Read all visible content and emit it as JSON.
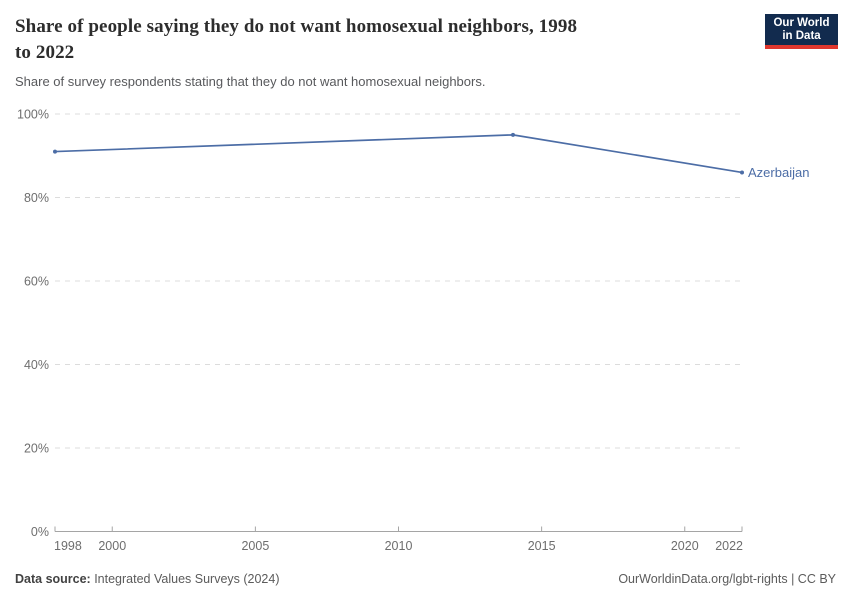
{
  "header": {
    "title": "Share of people saying they do not want homosexual neighbors, 1998\nto 2022",
    "subtitle": "Share of survey respondents stating that they do not want homosexual neighbors.",
    "logo": {
      "line1": "Our World",
      "line2": "in Data",
      "bg_color": "#122b4e",
      "accent_color": "#e0372e"
    }
  },
  "chart_data": {
    "type": "line",
    "title": "Share of people saying they do not want homosexual neighbors, 1998 to 2022",
    "xlabel": "",
    "ylabel": "",
    "xlim": [
      1998,
      2022
    ],
    "ylim": [
      0,
      100
    ],
    "x_ticks": [
      1998,
      2000,
      2005,
      2010,
      2015,
      2020,
      2022
    ],
    "y_ticks": [
      0,
      20,
      40,
      60,
      80,
      100
    ],
    "y_tick_suffix": "%",
    "grid": "dashed-horizontal",
    "legend": "end-of-line-label",
    "series": [
      {
        "name": "Azerbaijan",
        "color": "#4c6da6",
        "x": [
          1998,
          2014,
          2022
        ],
        "values": [
          91,
          95,
          86
        ]
      }
    ],
    "colors": {
      "gridline": "#dcdcdc",
      "axis": "#a5a5a5",
      "tick_label": "#6e6e6e"
    }
  },
  "footer": {
    "source_label": "Data source:",
    "source_value": " Integrated Values Surveys (2024)",
    "right_text": "OurWorldinData.org/lgbt-rights | CC BY"
  }
}
